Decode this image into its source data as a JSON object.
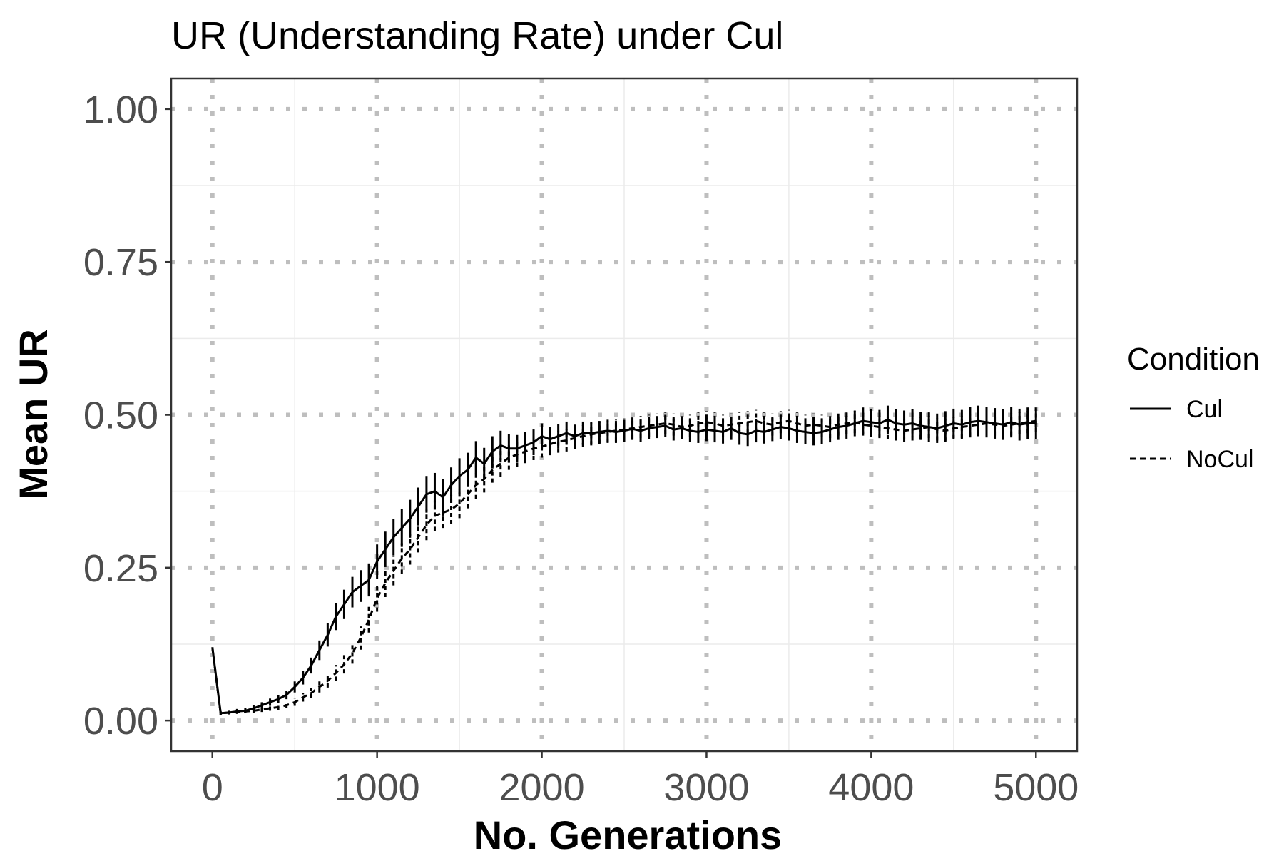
{
  "chart_data": {
    "type": "line",
    "title": "UR (Understanding Rate) under Cul",
    "xlabel": "No. Generations",
    "ylabel": "Mean UR",
    "xlim": [
      -250,
      5250
    ],
    "ylim": [
      -0.05,
      1.05
    ],
    "x_ticks": [
      0,
      1000,
      2000,
      3000,
      4000,
      5000
    ],
    "x_tick_labels": [
      "0",
      "1000",
      "2000",
      "3000",
      "4000",
      "5000"
    ],
    "y_ticks": [
      0,
      0.25,
      0.5,
      0.75,
      1.0
    ],
    "y_tick_labels": [
      "0.00",
      "0.25",
      "0.50",
      "0.75",
      "1.00"
    ],
    "grid": true,
    "legend": {
      "title": "Condition",
      "position": "right",
      "entries": [
        {
          "label": "Cul",
          "line_style": "solid"
        },
        {
          "label": "NoCul",
          "line_style": "dashed"
        }
      ]
    },
    "series": [
      {
        "name": "Cul",
        "line_style": "solid",
        "color": "#000000",
        "x": [
          0,
          50,
          100,
          150,
          200,
          250,
          300,
          350,
          400,
          450,
          500,
          550,
          600,
          650,
          700,
          750,
          800,
          850,
          900,
          950,
          1000,
          1050,
          1100,
          1150,
          1200,
          1250,
          1300,
          1350,
          1400,
          1450,
          1500,
          1550,
          1600,
          1650,
          1700,
          1750,
          1800,
          1850,
          1900,
          1950,
          2000,
          2050,
          2100,
          2150,
          2200,
          2250,
          2300,
          2350,
          2400,
          2450,
          2500,
          2550,
          2600,
          2650,
          2700,
          2750,
          2800,
          2850,
          2900,
          2950,
          3000,
          3050,
          3100,
          3150,
          3200,
          3250,
          3300,
          3350,
          3400,
          3450,
          3500,
          3550,
          3600,
          3650,
          3700,
          3750,
          3800,
          3850,
          3900,
          3950,
          4000,
          4050,
          4100,
          4150,
          4200,
          4250,
          4300,
          4350,
          4400,
          4450,
          4500,
          4550,
          4600,
          4650,
          4700,
          4750,
          4800,
          4850,
          4900,
          4950,
          5000
        ],
        "y": [
          0.12,
          0.012,
          0.013,
          0.015,
          0.016,
          0.02,
          0.025,
          0.03,
          0.035,
          0.042,
          0.055,
          0.07,
          0.09,
          0.115,
          0.14,
          0.17,
          0.19,
          0.21,
          0.22,
          0.23,
          0.26,
          0.28,
          0.3,
          0.315,
          0.33,
          0.35,
          0.37,
          0.375,
          0.365,
          0.385,
          0.4,
          0.41,
          0.43,
          0.42,
          0.44,
          0.45,
          0.445,
          0.445,
          0.45,
          0.455,
          0.465,
          0.46,
          0.465,
          0.47,
          0.465,
          0.47,
          0.47,
          0.472,
          0.474,
          0.472,
          0.474,
          0.477,
          0.474,
          0.478,
          0.48,
          0.482,
          0.476,
          0.478,
          0.474,
          0.472,
          0.476,
          0.474,
          0.472,
          0.478,
          0.47,
          0.468,
          0.474,
          0.472,
          0.476,
          0.48,
          0.478,
          0.474,
          0.472,
          0.47,
          0.472,
          0.476,
          0.48,
          0.482,
          0.486,
          0.49,
          0.488,
          0.486,
          0.492,
          0.486,
          0.484,
          0.486,
          0.482,
          0.48,
          0.478,
          0.482,
          0.486,
          0.484,
          0.488,
          0.49,
          0.488,
          0.486,
          0.484,
          0.488,
          0.484,
          0.486,
          0.486
        ],
        "error": [
          0,
          0.003,
          0.003,
          0.004,
          0.004,
          0.005,
          0.005,
          0.006,
          0.006,
          0.007,
          0.009,
          0.011,
          0.013,
          0.016,
          0.019,
          0.022,
          0.024,
          0.025,
          0.026,
          0.027,
          0.028,
          0.029,
          0.03,
          0.031,
          0.031,
          0.031,
          0.03,
          0.03,
          0.03,
          0.029,
          0.029,
          0.028,
          0.027,
          0.026,
          0.025,
          0.024,
          0.023,
          0.022,
          0.022,
          0.021,
          0.021,
          0.02,
          0.02,
          0.019,
          0.019,
          0.019,
          0.018,
          0.018,
          0.018,
          0.018,
          0.018,
          0.018,
          0.018,
          0.018,
          0.018,
          0.018,
          0.018,
          0.018,
          0.018,
          0.018,
          0.019,
          0.019,
          0.019,
          0.019,
          0.019,
          0.019,
          0.019,
          0.019,
          0.019,
          0.02,
          0.02,
          0.02,
          0.02,
          0.02,
          0.02,
          0.021,
          0.021,
          0.021,
          0.021,
          0.022,
          0.022,
          0.022,
          0.023,
          0.023,
          0.023,
          0.023,
          0.023,
          0.024,
          0.024,
          0.024,
          0.024,
          0.024,
          0.025,
          0.025,
          0.025,
          0.025,
          0.025,
          0.025,
          0.026,
          0.026,
          0.026
        ]
      },
      {
        "name": "NoCul",
        "line_style": "dashed",
        "color": "#000000",
        "x": [
          0,
          50,
          100,
          150,
          200,
          250,
          300,
          350,
          400,
          450,
          500,
          550,
          600,
          650,
          700,
          750,
          800,
          850,
          900,
          950,
          1000,
          1050,
          1100,
          1150,
          1200,
          1250,
          1300,
          1350,
          1400,
          1450,
          1500,
          1550,
          1600,
          1650,
          1700,
          1750,
          1800,
          1850,
          1900,
          1950,
          2000,
          2050,
          2100,
          2150,
          2200,
          2250,
          2300,
          2350,
          2400,
          2450,
          2500,
          2550,
          2600,
          2650,
          2700,
          2750,
          2800,
          2850,
          2900,
          2950,
          3000,
          3050,
          3100,
          3150,
          3200,
          3250,
          3300,
          3350,
          3400,
          3450,
          3500,
          3550,
          3600,
          3650,
          3700,
          3750,
          3800,
          3850,
          3900,
          3950,
          4000,
          4050,
          4100,
          4150,
          4200,
          4250,
          4300,
          4350,
          4400,
          4450,
          4500,
          4550,
          4600,
          4650,
          4700,
          4750,
          4800,
          4850,
          4900,
          4950,
          5000
        ],
        "y": [
          0.12,
          0.012,
          0.013,
          0.014,
          0.015,
          0.016,
          0.018,
          0.02,
          0.022,
          0.025,
          0.03,
          0.038,
          0.045,
          0.055,
          0.065,
          0.078,
          0.092,
          0.11,
          0.135,
          0.165,
          0.2,
          0.225,
          0.245,
          0.265,
          0.28,
          0.3,
          0.32,
          0.335,
          0.34,
          0.345,
          0.355,
          0.37,
          0.385,
          0.395,
          0.41,
          0.42,
          0.43,
          0.435,
          0.44,
          0.445,
          0.448,
          0.452,
          0.456,
          0.458,
          0.462,
          0.465,
          0.468,
          0.47,
          0.472,
          0.474,
          0.476,
          0.478,
          0.48,
          0.482,
          0.484,
          0.486,
          0.484,
          0.48,
          0.482,
          0.486,
          0.488,
          0.486,
          0.482,
          0.484,
          0.486,
          0.488,
          0.49,
          0.486,
          0.484,
          0.488,
          0.49,
          0.486,
          0.482,
          0.484,
          0.482,
          0.48,
          0.484,
          0.486,
          0.488,
          0.484,
          0.482,
          0.48,
          0.478,
          0.476,
          0.474,
          0.476,
          0.478,
          0.48,
          0.476,
          0.474,
          0.478,
          0.48,
          0.482,
          0.484,
          0.486,
          0.484,
          0.482,
          0.484,
          0.486,
          0.488,
          0.49
        ],
        "error": [
          0,
          0.003,
          0.003,
          0.003,
          0.003,
          0.004,
          0.004,
          0.004,
          0.005,
          0.005,
          0.006,
          0.007,
          0.008,
          0.009,
          0.011,
          0.013,
          0.015,
          0.017,
          0.019,
          0.021,
          0.022,
          0.023,
          0.024,
          0.025,
          0.025,
          0.025,
          0.025,
          0.025,
          0.025,
          0.024,
          0.024,
          0.023,
          0.023,
          0.022,
          0.021,
          0.021,
          0.02,
          0.02,
          0.019,
          0.019,
          0.018,
          0.018,
          0.018,
          0.018,
          0.018,
          0.018,
          0.018,
          0.018,
          0.018,
          0.018,
          0.018,
          0.018,
          0.018,
          0.018,
          0.018,
          0.018,
          0.018,
          0.018,
          0.018,
          0.018,
          0.018,
          0.018,
          0.018,
          0.018,
          0.018,
          0.018,
          0.018,
          0.018,
          0.018,
          0.018,
          0.018,
          0.018,
          0.018,
          0.018,
          0.018,
          0.018,
          0.018,
          0.018,
          0.018,
          0.018,
          0.018,
          0.018,
          0.018,
          0.018,
          0.018,
          0.018,
          0.018,
          0.018,
          0.018,
          0.018,
          0.018,
          0.018,
          0.018,
          0.018,
          0.018,
          0.018,
          0.018,
          0.018,
          0.018,
          0.018,
          0.018
        ]
      }
    ]
  }
}
